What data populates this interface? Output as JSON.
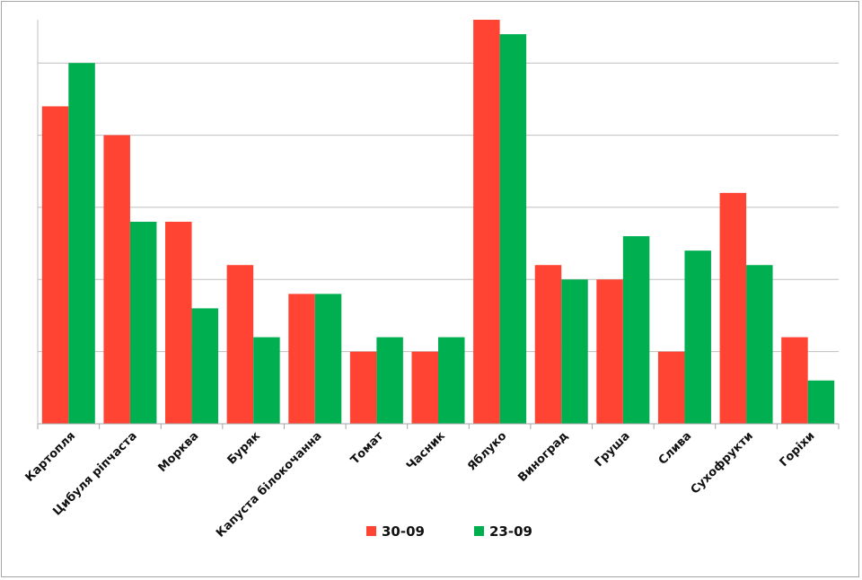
{
  "chart_data": {
    "type": "bar",
    "categories": [
      "Картопля",
      "Цибуля ріпчаста",
      "Морква",
      "Буряк",
      "Капуста білокочанна",
      "Томат",
      "Часник",
      "Яблуко",
      "Виноград",
      "Груша",
      "Слива",
      "Сухофрукти",
      "Горіхи"
    ],
    "series": [
      {
        "name": "30-09",
        "color": "#ff4433",
        "values": [
          4.4,
          4.0,
          2.8,
          2.2,
          1.8,
          1.0,
          1.0,
          5.6,
          2.2,
          2.0,
          1.0,
          3.2,
          1.2
        ]
      },
      {
        "name": "23-09",
        "color": "#00b050",
        "values": [
          5.0,
          2.8,
          1.6,
          1.2,
          1.8,
          1.2,
          1.2,
          5.4,
          2.0,
          2.6,
          2.4,
          2.2,
          0.6
        ]
      }
    ],
    "ylim": [
      0,
      5.6
    ],
    "grid": true,
    "legend": "bottom"
  }
}
